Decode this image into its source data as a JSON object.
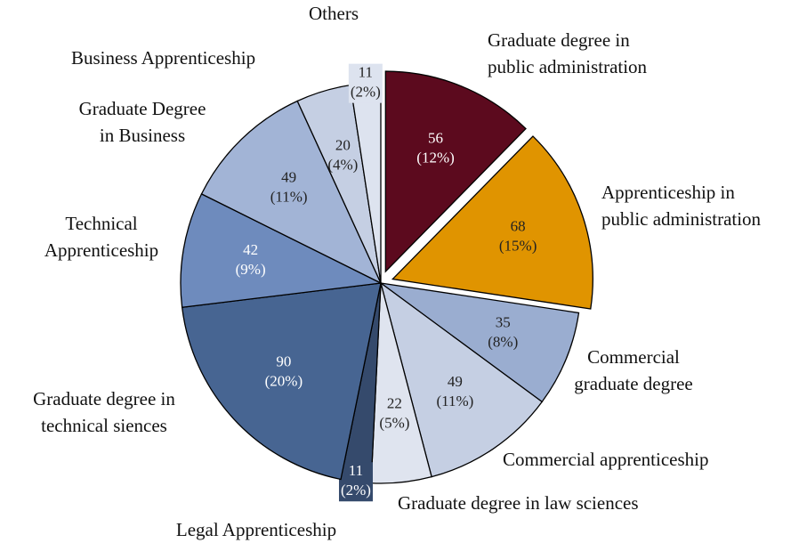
{
  "chart_data": {
    "type": "pie",
    "categories": [
      [
        "Graduate degree in",
        "public administration"
      ],
      [
        "Apprenticeship in",
        "public administration"
      ],
      [
        "Commercial",
        "graduate degree"
      ],
      [
        "Commercial apprenticeship"
      ],
      [
        "Graduate degree in law sciences"
      ],
      [
        "Legal Apprenticeship"
      ],
      [
        "Graduate degree in",
        "technical siences"
      ],
      [
        "Technical",
        "Apprenticeship"
      ],
      [
        "Graduate Degree",
        "in Business"
      ],
      [
        "Business Apprenticeship"
      ],
      [
        "Others"
      ]
    ],
    "values": [
      56,
      68,
      35,
      49,
      22,
      11,
      90,
      42,
      49,
      20,
      11
    ],
    "percent_labels": [
      "(12%)",
      "(15%)",
      "(8%)",
      "(11%)",
      "(5%)",
      "(2%)",
      "(20%)",
      "(9%)",
      "(11%)",
      "(4%)",
      "(2%)"
    ],
    "colors": [
      "#5c0a1e",
      "#e09400",
      "#9aadd0",
      "#c5cfe3",
      "#dfe4ef",
      "#354a6c",
      "#476592",
      "#6e8bbd",
      "#a2b4d6",
      "#c5cfe3",
      "#dde3ef"
    ],
    "label_colors": [
      "#ffffff",
      "#222222",
      "#222222",
      "#222222",
      "#222222",
      "#ffffff",
      "#ffffff",
      "#ffffff",
      "#222222",
      "#222222",
      "#222222"
    ],
    "exploded": [
      0,
      1
    ]
  }
}
